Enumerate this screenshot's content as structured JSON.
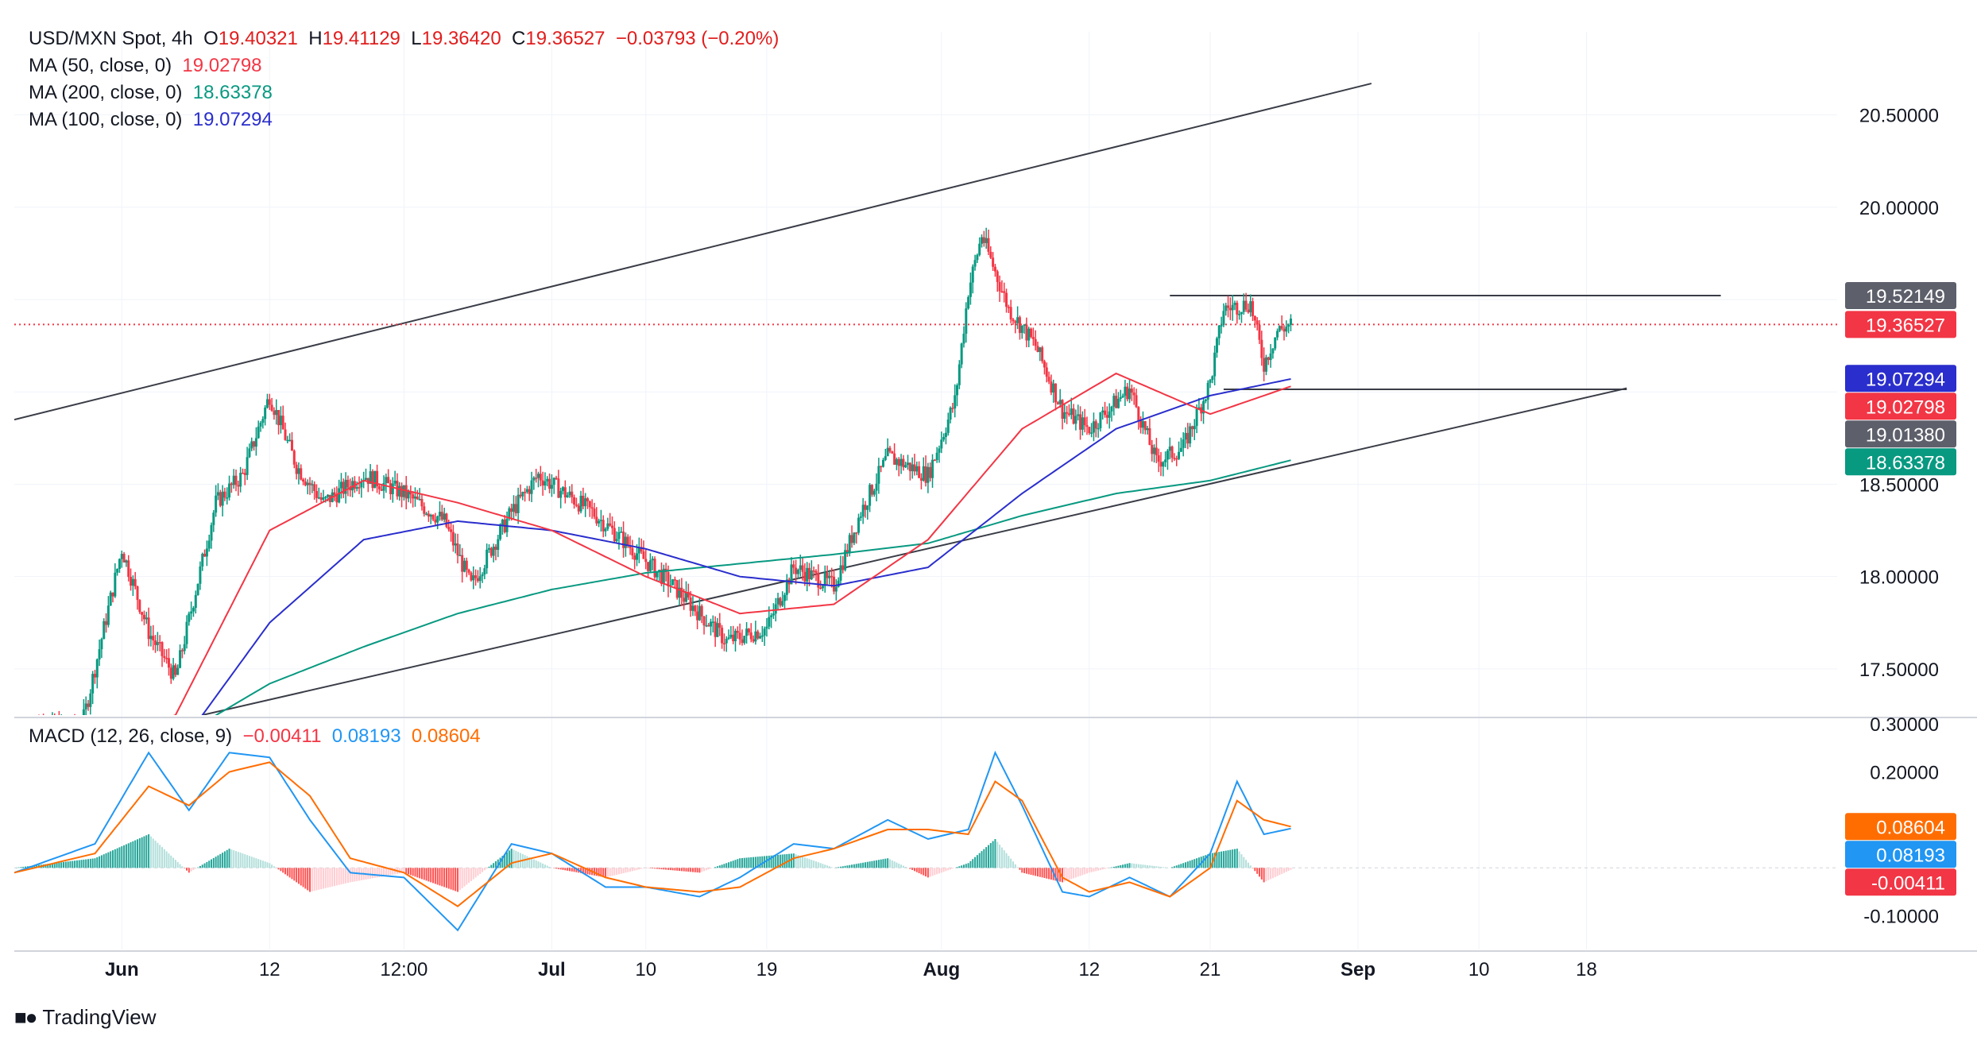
{
  "header": {
    "symbol": "USD/MXN Spot, 4h",
    "open_label": "O",
    "open": "19.40321",
    "high_label": "H",
    "high": "19.41129",
    "low_label": "L",
    "low": "19.36420",
    "close_label": "C",
    "close": "19.36527",
    "change": "−0.03793 (−0.20%)"
  },
  "indicators": {
    "ma50": {
      "label": "MA (50, close, 0)",
      "value": "19.02798",
      "color": "#f23645"
    },
    "ma200": {
      "label": "MA (200, close, 0)",
      "value": "18.63378",
      "color": "#089981"
    },
    "ma100": {
      "label": "MA (100, close, 0)",
      "value": "19.07294",
      "color": "#2a2ecc"
    },
    "macd": {
      "label": "MACD (12, 26, close, 9)",
      "hist": "−0.00411",
      "macd": "0.08193",
      "signal": "0.08604"
    }
  },
  "brand": {
    "name": "TradingView"
  },
  "chart_data": {
    "type": "candlestick",
    "price_axis": {
      "ticks": [
        "20.50000",
        "20.00000",
        "18.50000",
        "18.00000",
        "17.50000"
      ],
      "range": [
        17.25,
        20.95
      ]
    },
    "macd_axis": {
      "ticks": [
        "0.30000",
        "0.20000",
        "-0.10000"
      ],
      "range": [
        -0.17,
        0.31
      ]
    },
    "x_axis": {
      "labels": [
        "Jun",
        "12",
        "12:00",
        "Jul",
        "10",
        "19",
        "Aug",
        "12",
        "21",
        "Sep",
        "10",
        "18"
      ],
      "label_dates": [
        "2023-06-01",
        "2023-06-12",
        "2023-06-22",
        "2023-07-03",
        "2023-07-10",
        "2023-07-19",
        "2023-08-01",
        "2023-08-12",
        "2023-08-21",
        "2023-09-01",
        "2023-09-10",
        "2023-09-18"
      ]
    },
    "price_tags": [
      {
        "value": "19.52149",
        "price": 19.52149,
        "color": "#5d606b"
      },
      {
        "value": "19.36527",
        "price": 19.36527,
        "color": "#f23645"
      },
      {
        "value": "19.07294",
        "price": 19.07294,
        "color": "#2a2ecc"
      },
      {
        "value": "19.02798",
        "price": 19.02798,
        "color": "#f23645"
      },
      {
        "value": "19.01380",
        "price": 19.0138,
        "color": "#5d606b"
      },
      {
        "value": "18.63378",
        "price": 18.63378,
        "color": "#089981"
      }
    ],
    "macd_tags": [
      {
        "value": "0.08604",
        "level": 0.08604,
        "color": "#ff6d00"
      },
      {
        "value": "0.08193",
        "level": 0.08193,
        "color": "#2196f3"
      },
      {
        "value": "-0.00411",
        "level": -0.00411,
        "color": "#f23645"
      }
    ],
    "current_price": 19.36527,
    "horizontal_levels": [
      {
        "price": 19.52149,
        "from_date": "2023-08-18",
        "to_date": "2023-09-28"
      },
      {
        "price": 19.0138,
        "from_date": "2023-08-22",
        "to_date": "2023-09-21"
      }
    ],
    "trendlines": [
      {
        "from": [
          "2023-05-24",
          18.85
        ],
        "to": [
          "2023-09-02",
          20.67
        ]
      },
      {
        "from": [
          "2023-06-07",
          17.25
        ],
        "to": [
          "2023-09-21",
          19.02
        ]
      }
    ],
    "ohlc_keypoints": {
      "dates": [
        "2023-05-25",
        "2023-05-29",
        "2023-06-01",
        "2023-06-03",
        "2023-06-05",
        "2023-06-08",
        "2023-06-10",
        "2023-06-12",
        "2023-06-14",
        "2023-06-16",
        "2023-06-19",
        "2023-06-22",
        "2023-06-25",
        "2023-06-27",
        "2023-06-30",
        "2023-07-02",
        "2023-07-04",
        "2023-07-06",
        "2023-07-09",
        "2023-07-12",
        "2023-07-14",
        "2023-07-16",
        "2023-07-19",
        "2023-07-21",
        "2023-07-24",
        "2023-07-26",
        "2023-07-28",
        "2023-07-31",
        "2023-08-02",
        "2023-08-03",
        "2023-08-04",
        "2023-08-06",
        "2023-08-08",
        "2023-08-10",
        "2023-08-12",
        "2023-08-15",
        "2023-08-17",
        "2023-08-19",
        "2023-08-21",
        "2023-08-22",
        "2023-08-24",
        "2023-08-25",
        "2023-08-26",
        "2023-08-27"
      ],
      "close": [
        17.2,
        17.18,
        18.15,
        17.7,
        17.45,
        18.4,
        18.55,
        18.98,
        18.6,
        18.4,
        18.55,
        18.45,
        18.3,
        17.95,
        18.35,
        18.55,
        18.45,
        18.35,
        18.15,
        17.95,
        17.8,
        17.65,
        17.72,
        18.05,
        17.95,
        18.35,
        18.65,
        18.55,
        18.95,
        19.55,
        19.85,
        19.45,
        19.25,
        18.9,
        18.8,
        19.02,
        18.62,
        18.7,
        19.05,
        19.45,
        19.48,
        19.15,
        19.33,
        19.365
      ]
    },
    "ma_keypoints": {
      "dates": [
        "2023-05-30",
        "2023-06-05",
        "2023-06-12",
        "2023-06-19",
        "2023-06-26",
        "2023-07-03",
        "2023-07-10",
        "2023-07-17",
        "2023-07-24",
        "2023-07-31",
        "2023-08-07",
        "2023-08-14",
        "2023-08-21",
        "2023-08-27"
      ],
      "ma50": [
        17.1,
        17.25,
        18.25,
        18.52,
        18.4,
        18.25,
        18.0,
        17.8,
        17.85,
        18.2,
        18.8,
        19.1,
        18.88,
        19.03
      ],
      "ma100": [
        17.0,
        17.05,
        17.75,
        18.2,
        18.3,
        18.25,
        18.15,
        18.0,
        17.95,
        18.05,
        18.45,
        18.8,
        18.98,
        19.07
      ],
      "ma200": [
        17.0,
        17.12,
        17.42,
        17.62,
        17.8,
        17.93,
        18.02,
        18.07,
        18.12,
        18.18,
        18.33,
        18.45,
        18.52,
        18.63
      ]
    },
    "macd_keypoints": {
      "dates": [
        "2023-05-24",
        "2023-05-30",
        "2023-06-03",
        "2023-06-06",
        "2023-06-09",
        "2023-06-12",
        "2023-06-15",
        "2023-06-18",
        "2023-06-22",
        "2023-06-26",
        "2023-06-30",
        "2023-07-03",
        "2023-07-07",
        "2023-07-10",
        "2023-07-14",
        "2023-07-17",
        "2023-07-21",
        "2023-07-24",
        "2023-07-28",
        "2023-07-31",
        "2023-08-03",
        "2023-08-05",
        "2023-08-07",
        "2023-08-10",
        "2023-08-12",
        "2023-08-15",
        "2023-08-18",
        "2023-08-21",
        "2023-08-23",
        "2023-08-25",
        "2023-08-27"
      ],
      "macd": [
        -0.01,
        0.05,
        0.24,
        0.12,
        0.24,
        0.23,
        0.1,
        -0.01,
        -0.02,
        -0.13,
        0.05,
        0.03,
        -0.04,
        -0.04,
        -0.06,
        -0.02,
        0.05,
        0.04,
        0.1,
        0.06,
        0.08,
        0.24,
        0.13,
        -0.05,
        -0.06,
        -0.02,
        -0.06,
        0.03,
        0.18,
        0.07,
        0.082
      ],
      "signal": [
        -0.01,
        0.03,
        0.17,
        0.13,
        0.2,
        0.22,
        0.15,
        0.02,
        -0.01,
        -0.08,
        0.01,
        0.03,
        -0.02,
        -0.04,
        -0.05,
        -0.04,
        0.02,
        0.04,
        0.08,
        0.08,
        0.07,
        0.18,
        0.14,
        -0.02,
        -0.05,
        -0.03,
        -0.06,
        0.0,
        0.14,
        0.1,
        0.086
      ]
    }
  }
}
